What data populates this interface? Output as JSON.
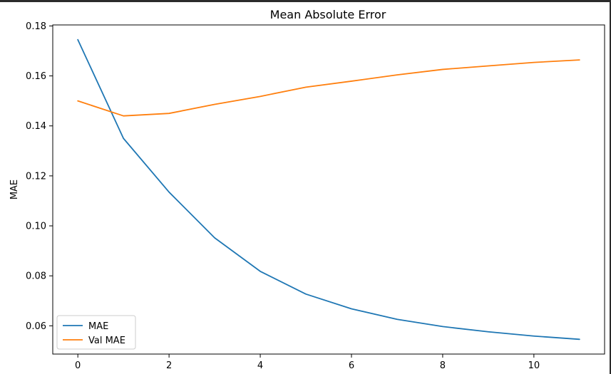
{
  "chart_data": {
    "type": "line",
    "title": "Mean Absolute Error",
    "xlabel": "",
    "ylabel": "MAE",
    "x": [
      0,
      1,
      2,
      3,
      4,
      5,
      6,
      7,
      8,
      9,
      10,
      11
    ],
    "series": [
      {
        "name": "MAE",
        "color": "#1f77b4",
        "values": [
          0.1745,
          0.135,
          0.1135,
          0.0952,
          0.0818,
          0.0727,
          0.0668,
          0.0626,
          0.0597,
          0.0576,
          0.0559,
          0.0546
        ]
      },
      {
        "name": "Val MAE",
        "color": "#ff7f0e",
        "values": [
          0.15,
          0.144,
          0.145,
          0.1486,
          0.1518,
          0.1555,
          0.1579,
          0.1604,
          0.1626,
          0.164,
          0.1654,
          0.1664
        ]
      }
    ],
    "xticks": [
      0,
      2,
      4,
      6,
      8,
      10
    ],
    "yticks": [
      0.06,
      0.08,
      0.1,
      0.12,
      0.14,
      0.16,
      0.18
    ],
    "ytick_labels": [
      "0.06",
      "0.08",
      "0.10",
      "0.12",
      "0.14",
      "0.16",
      "0.18"
    ],
    "xlim": [
      -0.55,
      11.55
    ],
    "ylim": [
      0.0487,
      0.1804
    ],
    "grid": false,
    "legend_position": "lower-left"
  }
}
